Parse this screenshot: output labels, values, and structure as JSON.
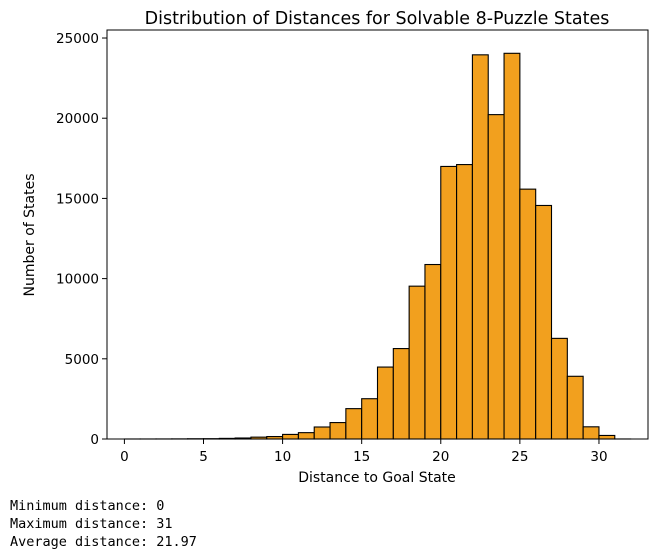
{
  "chart_data": {
    "type": "bar",
    "title": "Distribution of Distances for Solvable 8-Puzzle States",
    "xlabel": "Distance to Goal State",
    "ylabel": "Number of States",
    "xlim": [
      -1.1,
      33.1
    ],
    "ylim": [
      0,
      25500
    ],
    "xticks": [
      0,
      5,
      10,
      15,
      20,
      25,
      30
    ],
    "yticks": [
      0,
      5000,
      10000,
      15000,
      20000,
      25000
    ],
    "bin_edges": [
      0,
      1,
      2,
      3,
      4,
      5,
      6,
      7,
      8,
      9,
      10,
      11,
      12,
      13,
      14,
      15,
      16,
      17,
      18,
      19,
      20,
      21,
      22,
      23,
      24,
      25,
      26,
      27,
      28,
      29,
      30,
      31,
      32
    ],
    "values": [
      1,
      2,
      4,
      8,
      16,
      20,
      39,
      62,
      116,
      152,
      286,
      396,
      748,
      1024,
      1893,
      2512,
      4485,
      5638,
      9529,
      10878,
      16993,
      17110,
      23952,
      20224,
      24047,
      15578,
      14560,
      6274,
      3910,
      760,
      221,
      2
    ],
    "bar_color": "#f2a01e",
    "edge_color": "#000000",
    "grid": false,
    "legend": "none"
  },
  "output": {
    "lines": [
      "Minimum distance: 0",
      "Maximum distance: 31",
      "Average distance: 21.97"
    ]
  }
}
